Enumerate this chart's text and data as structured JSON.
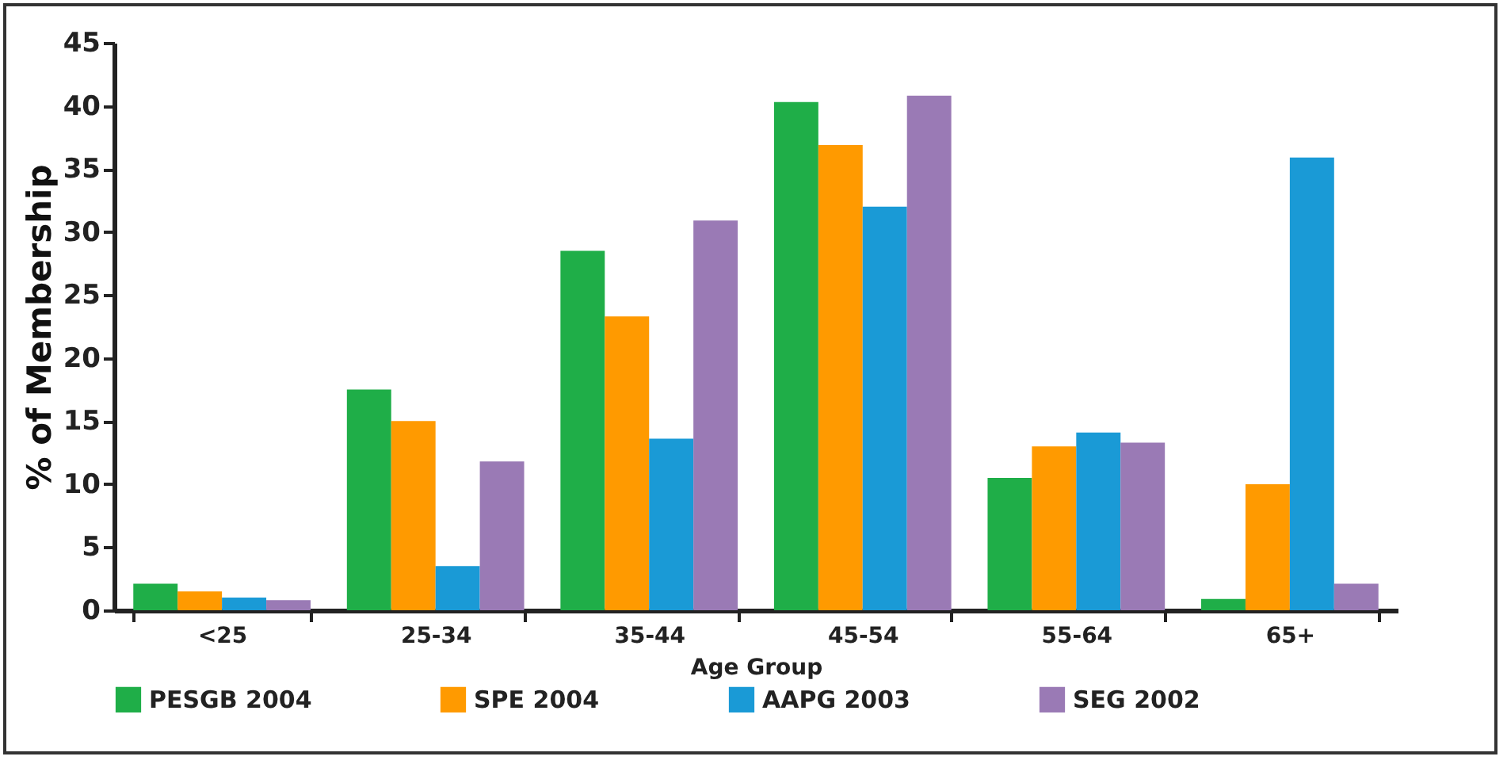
{
  "chart_data": {
    "type": "bar",
    "xlabel": "Age Group",
    "ylabel": "% of Membership",
    "categories": [
      "<25",
      "25-34",
      "35-44",
      "45-54",
      "55-64",
      "65+"
    ],
    "series": [
      {
        "name": "PESGB 2004",
        "color": "#1fae48",
        "values": [
          2.1,
          17.5,
          28.5,
          40.3,
          10.5,
          0.9
        ]
      },
      {
        "name": "SPE 2004",
        "color": "#ff9a00",
        "values": [
          1.5,
          15,
          23.3,
          36.9,
          13.0,
          10.0
        ]
      },
      {
        "name": "AAPG 2003",
        "color": "#1a9ad6",
        "values": [
          1.0,
          3.5,
          13.6,
          32.0,
          14.1,
          35.9
        ]
      },
      {
        "name": "SEG 2002",
        "color": "#9a7ab5",
        "values": [
          0.8,
          11.8,
          30.9,
          40.8,
          13.3,
          2.1
        ]
      }
    ],
    "ylim": [
      0,
      45
    ],
    "yticks": [
      0,
      5,
      10,
      15,
      20,
      25,
      30,
      35,
      40,
      45
    ],
    "grid": false,
    "legend": "bottom"
  }
}
